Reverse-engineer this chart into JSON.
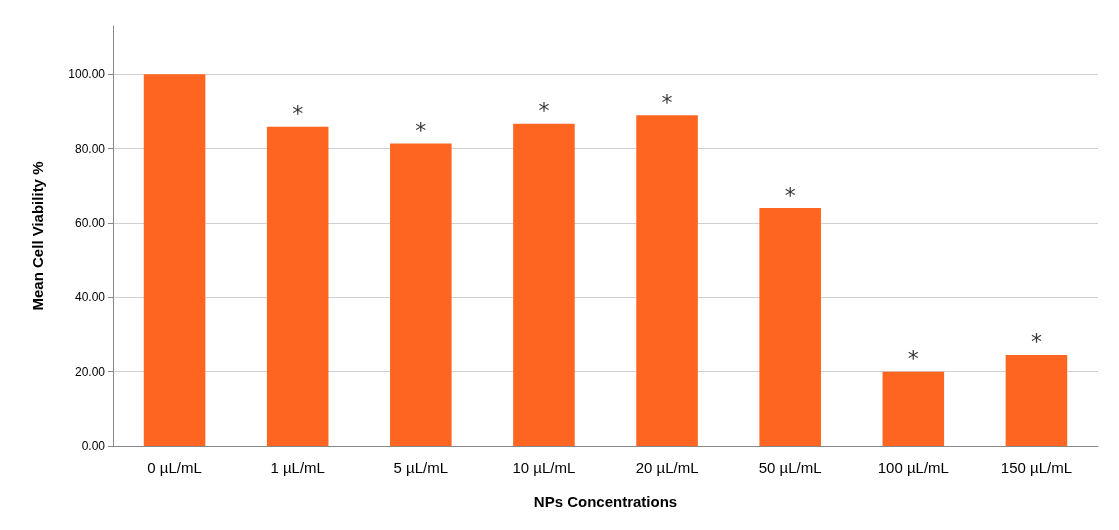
{
  "chart_data": {
    "type": "bar",
    "xlabel": "NPs Concentrations",
    "ylabel": "Mean Cell Viability %",
    "categories": [
      "0 µL/mL",
      "1 µL/mL",
      "5 µL/mL",
      "10 µL/mL",
      "20 µL/mL",
      "50 µL/mL",
      "100 µL/mL",
      "150 µL/mL"
    ],
    "values": [
      100,
      85.9,
      81.4,
      86.7,
      89.0,
      64.0,
      20.0,
      24.5
    ],
    "color": "#fe6520",
    "ylim": [
      0,
      113
    ],
    "yticks": [
      {
        "value": 0,
        "label": "0.00"
      },
      {
        "value": 20,
        "label": "20.00"
      },
      {
        "value": 40,
        "label": "40.00"
      },
      {
        "value": 60,
        "label": "60.00"
      },
      {
        "value": 80,
        "label": "80.00"
      },
      {
        "value": 100,
        "label": "100.00"
      }
    ],
    "grid": "y",
    "annotations": [
      {
        "text": "*",
        "x": "1 µL/mL",
        "y": 85.9
      },
      {
        "text": "*",
        "x": "5 µL/mL",
        "y": 81.4
      },
      {
        "text": "*",
        "x": "10 µL/mL",
        "y": 86.7
      },
      {
        "text": "*",
        "x": "20 µL/mL",
        "y": 89.0
      },
      {
        "text": "*",
        "x": "50 µL/mL",
        "y": 64.0
      },
      {
        "text": "*",
        "x": "100 µL/mL",
        "y": 20.0
      },
      {
        "text": "*",
        "x": "150 µL/mL",
        "y": 24.5
      }
    ]
  }
}
